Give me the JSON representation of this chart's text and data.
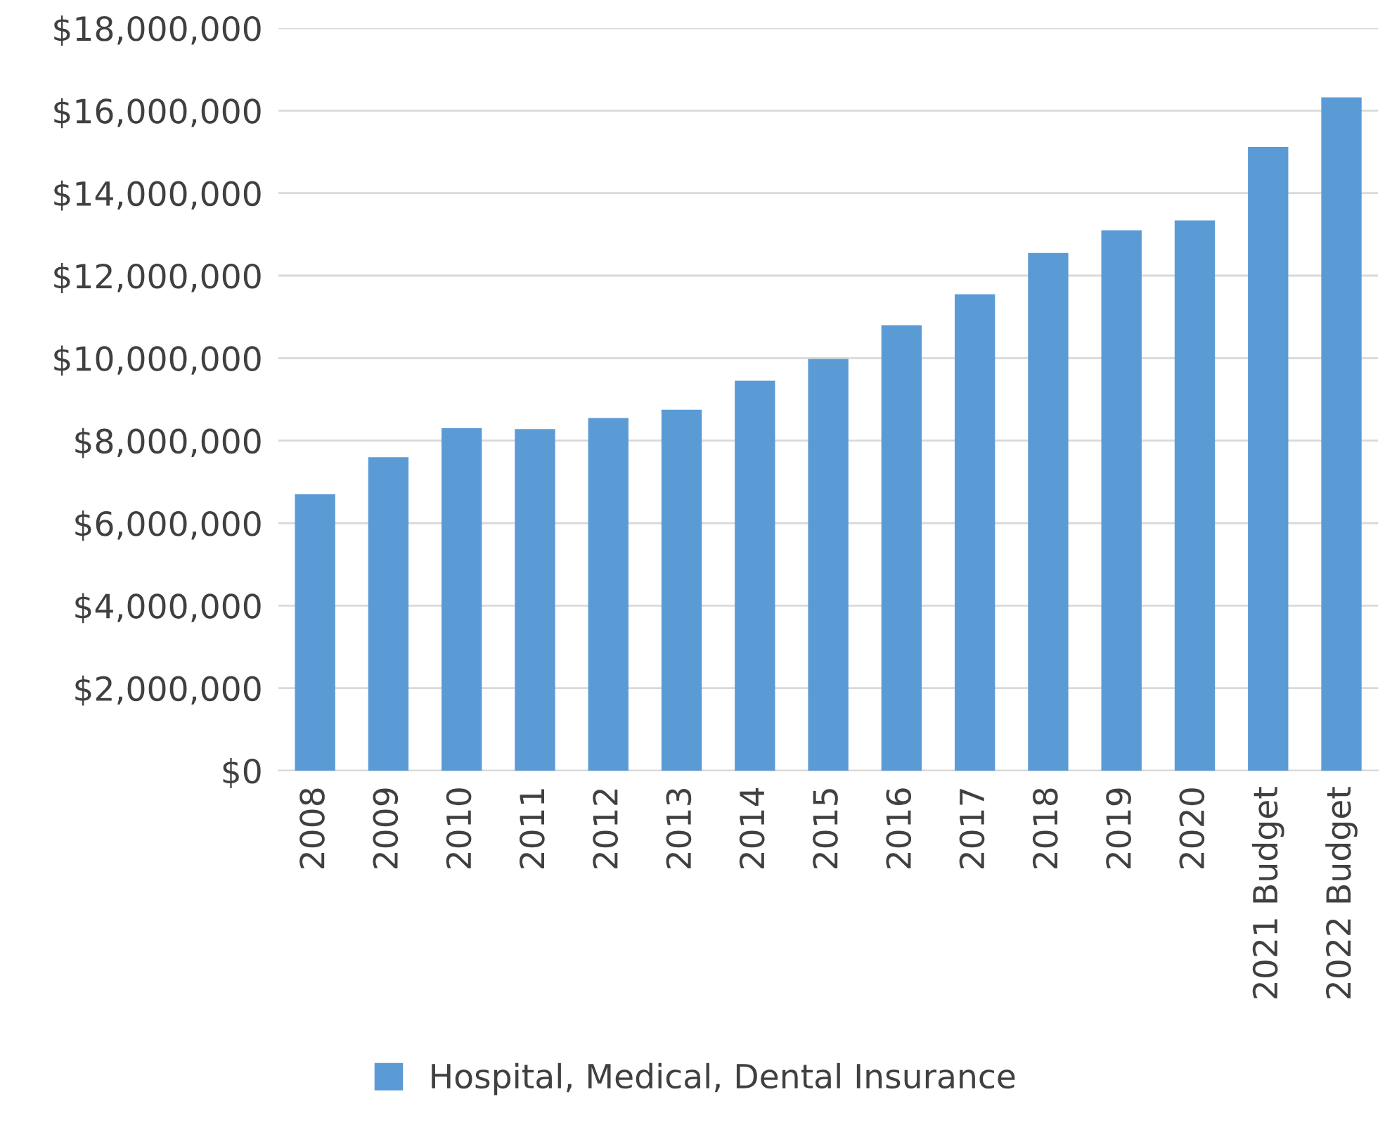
{
  "chart_data": {
    "type": "bar",
    "categories": [
      "2008",
      "2009",
      "2010",
      "2011",
      "2012",
      "2013",
      "2014",
      "2015",
      "2016",
      "2017",
      "2018",
      "2019",
      "2020",
      "2021 Budget",
      "2022 Budget"
    ],
    "series": [
      {
        "name": "Hospital, Medical, Dental Insurance",
        "color": "#5b9bd5",
        "values": [
          6700000,
          7600000,
          8300000,
          8280000,
          8550000,
          8750000,
          9450000,
          9980000,
          10800000,
          11550000,
          12550000,
          13100000,
          13340000,
          15120000,
          16320000
        ]
      }
    ],
    "ylim": [
      0,
      18000000
    ],
    "yticks": [
      {
        "value": 0,
        "label": "$0"
      },
      {
        "value": 2000000,
        "label": "$2,000,000"
      },
      {
        "value": 4000000,
        "label": "$4,000,000"
      },
      {
        "value": 6000000,
        "label": "$6,000,000"
      },
      {
        "value": 8000000,
        "label": "$8,000,000"
      },
      {
        "value": 10000000,
        "label": "$10,000,000"
      },
      {
        "value": 12000000,
        "label": "$12,000,000"
      },
      {
        "value": 14000000,
        "label": "$14,000,000"
      },
      {
        "value": 16000000,
        "label": "$16,000,000"
      },
      {
        "value": 18000000,
        "label": "$18,000,000"
      }
    ],
    "grid": "y",
    "legend": "bottom"
  }
}
